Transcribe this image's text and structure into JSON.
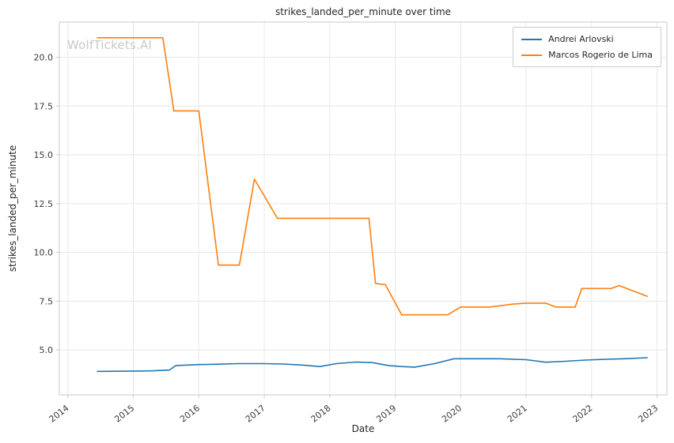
{
  "watermark": {
    "text": "WolfTickets.AI",
    "color": "#c9c9c9"
  },
  "chart_data": {
    "type": "line",
    "title": "strikes_landed_per_minute over time",
    "xlabel": "Date",
    "ylabel": "strikes_landed_per_minute",
    "grid": true,
    "legend_position": "upper right",
    "xlim": [
      2013.87,
      2023.15
    ],
    "ylim": [
      2.7,
      21.8
    ],
    "xticks": {
      "values": [
        2014,
        2015,
        2016,
        2017,
        2018,
        2019,
        2020,
        2021,
        2022,
        2023
      ],
      "labels": [
        "2014",
        "2015",
        "2016",
        "2017",
        "2018",
        "2019",
        "2020",
        "2021",
        "2022",
        "2023"
      ]
    },
    "yticks": {
      "values": [
        5.0,
        7.5,
        10.0,
        12.5,
        15.0,
        17.5,
        20.0
      ],
      "labels": [
        "5.0",
        "7.5",
        "10.0",
        "12.5",
        "15.0",
        "17.5",
        "20.0"
      ]
    },
    "series": [
      {
        "name": "Andrei Arlovski",
        "color": "#1f77b4",
        "x": [
          2014.45,
          2015.0,
          2015.3,
          2015.55,
          2015.65,
          2016.0,
          2016.3,
          2016.6,
          2017.0,
          2017.3,
          2017.6,
          2017.85,
          2018.1,
          2018.4,
          2018.65,
          2018.9,
          2019.1,
          2019.3,
          2019.6,
          2019.9,
          2020.2,
          2020.6,
          2021.0,
          2021.3,
          2021.6,
          2021.9,
          2022.2,
          2022.5,
          2022.85
        ],
        "y": [
          3.9,
          3.92,
          3.93,
          3.97,
          4.2,
          4.25,
          4.27,
          4.3,
          4.3,
          4.28,
          4.22,
          4.15,
          4.3,
          4.38,
          4.35,
          4.2,
          4.15,
          4.12,
          4.3,
          4.55,
          4.55,
          4.55,
          4.5,
          4.37,
          4.42,
          4.48,
          4.52,
          4.55,
          4.6
        ]
      },
      {
        "name": "Marcos Rogerio de Lima",
        "color": "#ff7f0e",
        "x": [
          2014.45,
          2015.45,
          2015.62,
          2016.0,
          2016.3,
          2016.62,
          2016.85,
          2017.0,
          2017.2,
          2018.6,
          2018.7,
          2018.85,
          2019.1,
          2019.8,
          2020.0,
          2020.45,
          2020.8,
          2021.0,
          2021.3,
          2021.45,
          2021.75,
          2021.85,
          2022.3,
          2022.42,
          2022.85
        ],
        "y": [
          21.0,
          21.0,
          17.25,
          17.25,
          9.35,
          9.35,
          13.75,
          12.9,
          11.75,
          11.75,
          8.4,
          8.35,
          6.8,
          6.8,
          7.2,
          7.2,
          7.35,
          7.4,
          7.4,
          7.2,
          7.2,
          8.15,
          8.15,
          8.3,
          7.75
        ]
      }
    ],
    "colors": {
      "grid": "#e7e7e7",
      "frame": "#c9c9c9",
      "tick_text": "#3b3b3b"
    }
  }
}
